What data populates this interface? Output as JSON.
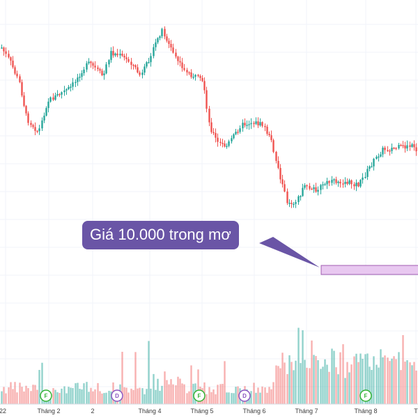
{
  "chart_data": {
    "type": "candlestick",
    "x_tick_labels": [
      "22",
      "Tháng 2",
      "2",
      "Tháng 4",
      "Tháng 5",
      "Tháng 6",
      "Tháng 7",
      "Tháng 8",
      "T"
    ],
    "grid": true,
    "up_color": "#26a69a",
    "down_color": "#ef5350",
    "annotation": {
      "text": "Giá 10.000 trong mơ",
      "box_color": "#6a55a6",
      "zone_color": "#e8c8f0"
    },
    "event_markers": [
      {
        "letter": "F",
        "color": "#33b233"
      },
      {
        "letter": "D",
        "color": "#8a55c0"
      },
      {
        "letter": "F",
        "color": "#33b233"
      },
      {
        "letter": "D",
        "color": "#8a55c0"
      },
      {
        "letter": "F",
        "color": "#33b233"
      }
    ]
  }
}
